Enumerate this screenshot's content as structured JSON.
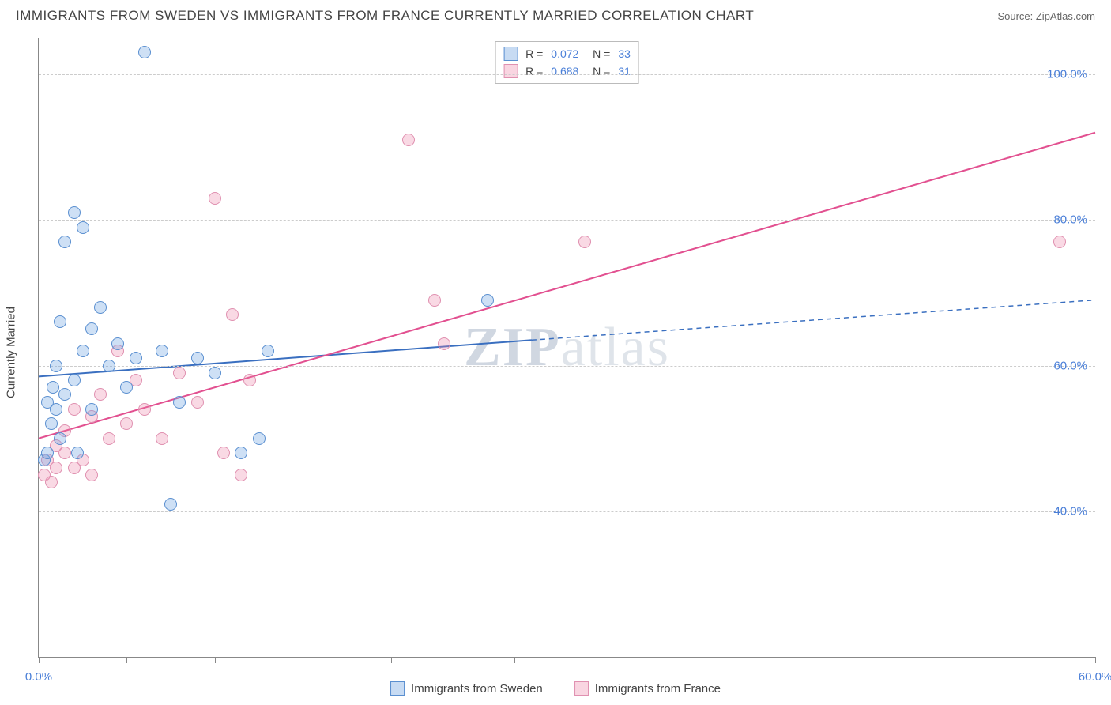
{
  "title": "IMMIGRANTS FROM SWEDEN VS IMMIGRANTS FROM FRANCE CURRENTLY MARRIED CORRELATION CHART",
  "source": "Source: ZipAtlas.com",
  "watermark": {
    "zip": "ZIP",
    "atlas": "atlas"
  },
  "chart": {
    "type": "scatter",
    "y_axis_label": "Currently Married",
    "background_color": "#ffffff",
    "grid_color": "#cccccc",
    "axis_color": "#888888",
    "tick_label_color": "#4a7fd8",
    "xlim": [
      0,
      60
    ],
    "ylim": [
      20,
      105
    ],
    "x_ticks": [
      0,
      5,
      10,
      20,
      27,
      60
    ],
    "x_tick_labels": {
      "0": "0.0%",
      "60": "60.0%"
    },
    "y_ticks": [
      40,
      60,
      80,
      100
    ],
    "y_tick_labels": [
      "40.0%",
      "60.0%",
      "80.0%",
      "100.0%"
    ],
    "series": {
      "sweden": {
        "label": "Immigrants from Sweden",
        "color_fill": "rgba(115,165,225,0.35)",
        "color_stroke": "#5a8fd0",
        "R": "0.072",
        "N": "33",
        "trend": {
          "x1": 0,
          "y1": 58.5,
          "x2": 28,
          "y2": 63.5,
          "x2_dash": 60,
          "y2_dash": 69,
          "stroke": "#3a6fc0",
          "stroke_width": 2
        },
        "points": [
          [
            0.3,
            47
          ],
          [
            0.5,
            48
          ],
          [
            0.5,
            55
          ],
          [
            0.7,
            52
          ],
          [
            0.8,
            57
          ],
          [
            1.0,
            54
          ],
          [
            1.0,
            60
          ],
          [
            1.2,
            66
          ],
          [
            1.2,
            50
          ],
          [
            1.5,
            56
          ],
          [
            1.5,
            77
          ],
          [
            2.0,
            81
          ],
          [
            2.0,
            58
          ],
          [
            2.2,
            48
          ],
          [
            2.5,
            62
          ],
          [
            2.5,
            79
          ],
          [
            3.0,
            65
          ],
          [
            3.0,
            54
          ],
          [
            3.5,
            68
          ],
          [
            4.0,
            60
          ],
          [
            4.5,
            63
          ],
          [
            5.0,
            57
          ],
          [
            5.5,
            61
          ],
          [
            6.0,
            103
          ],
          [
            7.0,
            62
          ],
          [
            7.5,
            41
          ],
          [
            8.0,
            55
          ],
          [
            9.0,
            61
          ],
          [
            10.0,
            59
          ],
          [
            11.5,
            48
          ],
          [
            12.5,
            50
          ],
          [
            13.0,
            62
          ],
          [
            25.5,
            69
          ]
        ]
      },
      "france": {
        "label": "Immigrants from France",
        "color_fill": "rgba(235,130,165,0.3)",
        "color_stroke": "#e070a0",
        "R": "0.688",
        "N": "31",
        "trend": {
          "x1": 0,
          "y1": 50,
          "x2": 60,
          "y2": 92,
          "stroke": "#e25090",
          "stroke_width": 2
        },
        "points": [
          [
            0.3,
            45
          ],
          [
            0.5,
            47
          ],
          [
            0.7,
            44
          ],
          [
            1.0,
            46
          ],
          [
            1.0,
            49
          ],
          [
            1.5,
            48
          ],
          [
            1.5,
            51
          ],
          [
            2.0,
            46
          ],
          [
            2.0,
            54
          ],
          [
            2.5,
            47
          ],
          [
            3.0,
            53
          ],
          [
            3.0,
            45
          ],
          [
            3.5,
            56
          ],
          [
            4.0,
            50
          ],
          [
            4.5,
            62
          ],
          [
            5.0,
            52
          ],
          [
            5.5,
            58
          ],
          [
            6.0,
            54
          ],
          [
            7.0,
            50
          ],
          [
            8.0,
            59
          ],
          [
            9.0,
            55
          ],
          [
            10.0,
            83
          ],
          [
            10.5,
            48
          ],
          [
            11.0,
            67
          ],
          [
            11.5,
            45
          ],
          [
            12.0,
            58
          ],
          [
            21.0,
            91
          ],
          [
            22.5,
            69
          ],
          [
            23.0,
            63
          ],
          [
            31.0,
            77
          ],
          [
            58.0,
            77
          ]
        ]
      }
    }
  }
}
